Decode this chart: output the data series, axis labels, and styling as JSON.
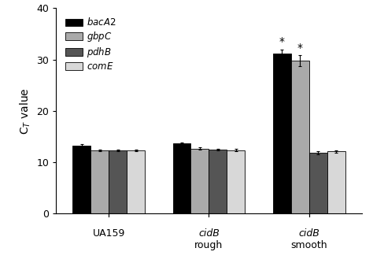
{
  "groups": [
    "UA159",
    "cidB\nrough",
    "cidB\nsmooth"
  ],
  "group_labels_line1": [
    "UA159",
    "cidB",
    "cidB"
  ],
  "group_labels_line2": [
    "",
    "rough",
    "smooth"
  ],
  "series": [
    "bacA2",
    "gbpC",
    "pdhB",
    "comE"
  ],
  "values": [
    [
      13.3,
      12.3,
      12.3,
      12.3
    ],
    [
      13.7,
      12.7,
      12.5,
      12.4
    ],
    [
      31.2,
      29.8,
      11.8,
      12.1
    ]
  ],
  "errors": [
    [
      0.2,
      0.2,
      0.2,
      0.2
    ],
    [
      0.2,
      0.2,
      0.2,
      0.2
    ],
    [
      0.8,
      1.0,
      0.3,
      0.3
    ]
  ],
  "bar_colors": [
    "#000000",
    "#aaaaaa",
    "#555555",
    "#d8d8d8"
  ],
  "bar_edge_color": "#000000",
  "ylabel": "C$_T$ value",
  "ylim": [
    0,
    40
  ],
  "yticks": [
    0,
    10,
    20,
    30,
    40
  ],
  "legend_labels": [
    "bacA2",
    "gbpC",
    "pdhB",
    "comE"
  ],
  "bar_width": 0.13,
  "group_centers": [
    0.28,
    1.0,
    1.72
  ],
  "background_color": "#ffffff"
}
